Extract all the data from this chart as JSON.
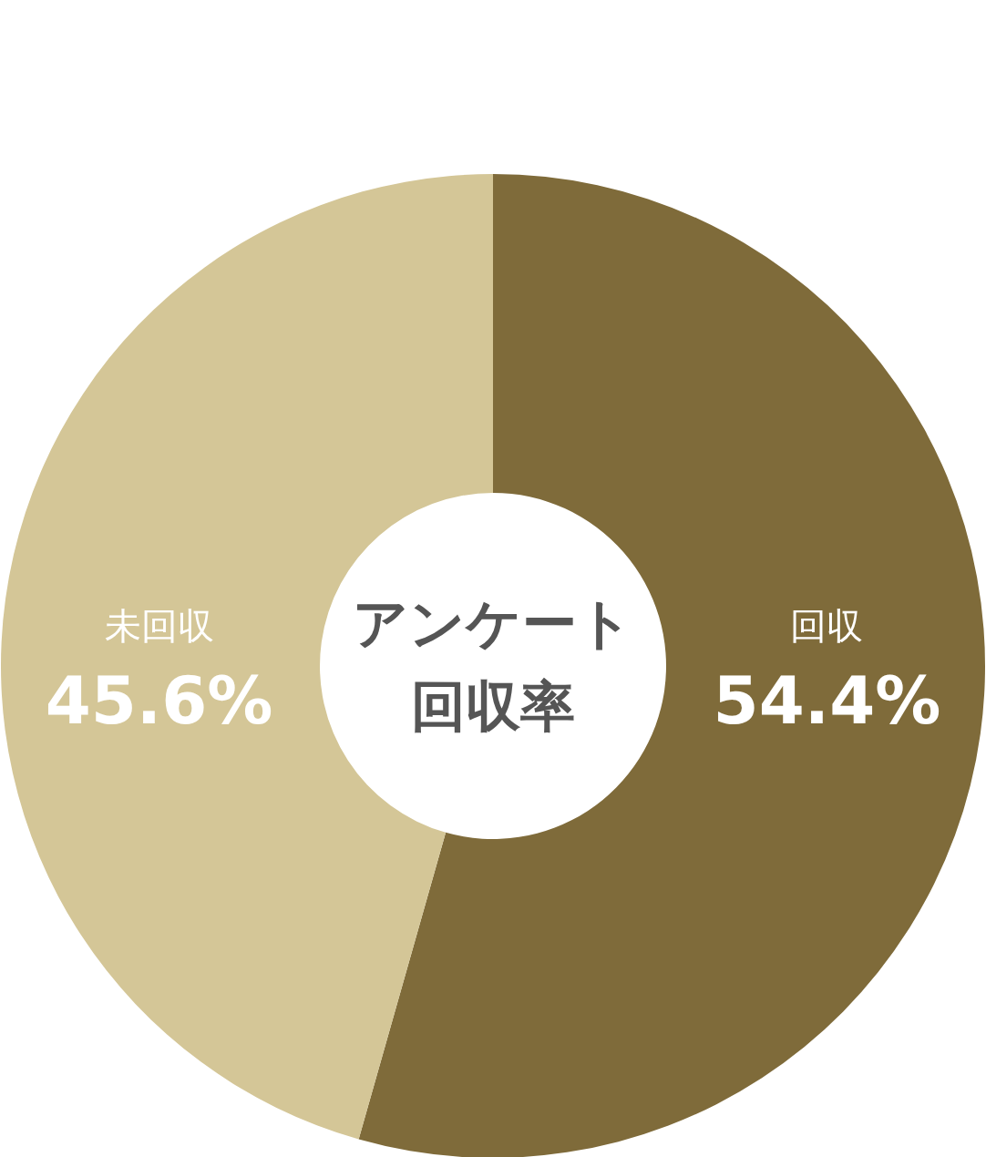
{
  "chart_data": {
    "type": "donut",
    "title": "アンケート回収率",
    "categories": [
      "回収",
      "未回収"
    ],
    "values": [
      54.4,
      45.6
    ],
    "colors": [
      "#7f6b3a",
      "#d4c697"
    ],
    "value_labels": [
      "54.4%",
      "45.6%"
    ]
  }
}
